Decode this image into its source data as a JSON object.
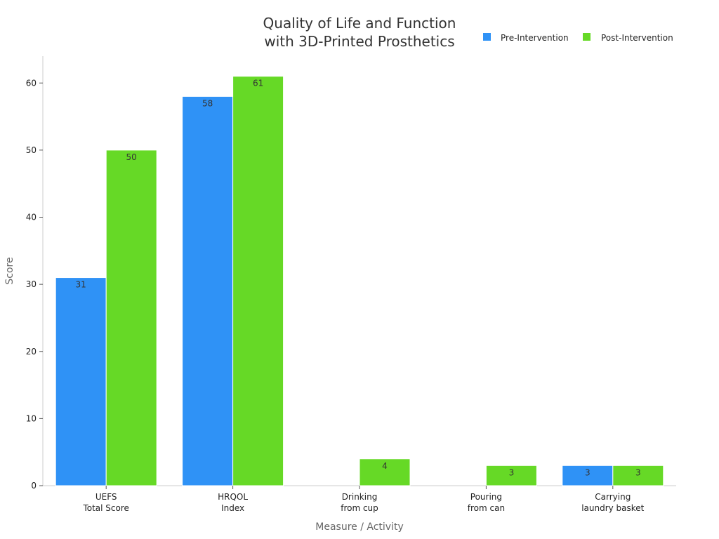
{
  "chart_data": {
    "type": "bar",
    "title": [
      "Quality of Life and Function",
      "with 3D-Printed Prosthetics"
    ],
    "xlabel": "Measure / Activity",
    "ylabel": "Score",
    "ylim": [
      0,
      64
    ],
    "yticks": [
      0,
      10,
      20,
      30,
      40,
      50,
      60
    ],
    "grid": false,
    "legend_position": "top-right",
    "categories": [
      [
        "UEFS",
        "Total Score"
      ],
      [
        "HRQOL",
        "Index"
      ],
      [
        "Drinking",
        "from cup"
      ],
      [
        "Pouring",
        "from can"
      ],
      [
        "Carrying",
        "laundry basket"
      ]
    ],
    "series": [
      {
        "name": "Pre-Intervention",
        "color": "#2f92f6",
        "values": [
          31,
          58,
          0,
          0,
          3
        ]
      },
      {
        "name": "Post-Intervention",
        "color": "#66d926",
        "values": [
          50,
          61,
          4,
          3,
          3
        ]
      }
    ]
  }
}
